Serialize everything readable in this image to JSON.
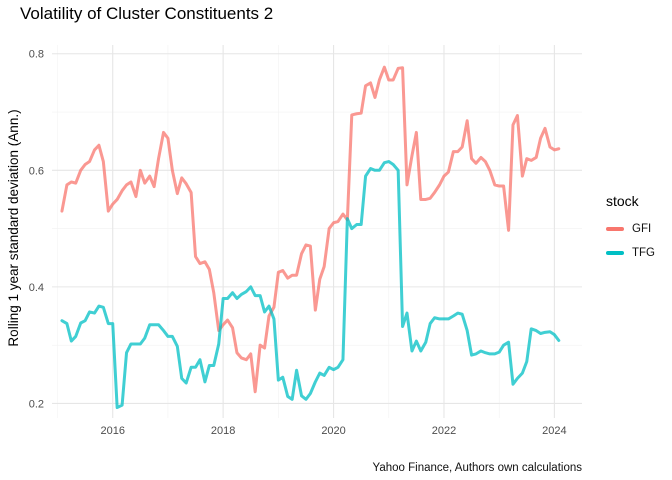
{
  "chart_data": {
    "type": "line",
    "title": "Volatility of Cluster Constituents 2",
    "xlabel": "",
    "ylabel": "Rolling 1 year standard deviation (Ann.)",
    "caption": "Yahoo Finance, Authors own calculations",
    "xlim": [
      2014.9,
      2024.5
    ],
    "ylim": [
      0.175,
      0.815
    ],
    "x_ticks": [
      2016,
      2018,
      2020,
      2022,
      2024
    ],
    "x_tick_labels": [
      "2016",
      "2018",
      "2020",
      "2022",
      "2024"
    ],
    "y_ticks": [
      0.2,
      0.4,
      0.6,
      0.8
    ],
    "y_tick_labels": [
      "0.2",
      "0.4",
      "0.6",
      "0.8"
    ],
    "grid": true,
    "legend": {
      "title": "stock",
      "position": "right"
    },
    "series": [
      {
        "name": "GFI",
        "color": "#F8766D",
        "points": [
          [
            2015.08,
            0.53
          ],
          [
            2015.17,
            0.575
          ],
          [
            2015.25,
            0.58
          ],
          [
            2015.33,
            0.578
          ],
          [
            2015.42,
            0.6
          ],
          [
            2015.5,
            0.61
          ],
          [
            2015.58,
            0.615
          ],
          [
            2015.67,
            0.635
          ],
          [
            2015.75,
            0.643
          ],
          [
            2015.83,
            0.615
          ],
          [
            2015.92,
            0.53
          ],
          [
            2016.0,
            0.542
          ],
          [
            2016.08,
            0.55
          ],
          [
            2016.17,
            0.565
          ],
          [
            2016.25,
            0.575
          ],
          [
            2016.33,
            0.58
          ],
          [
            2016.42,
            0.555
          ],
          [
            2016.5,
            0.6
          ],
          [
            2016.58,
            0.578
          ],
          [
            2016.67,
            0.59
          ],
          [
            2016.75,
            0.572
          ],
          [
            2016.83,
            0.62
          ],
          [
            2016.92,
            0.665
          ],
          [
            2017.0,
            0.655
          ],
          [
            2017.08,
            0.6
          ],
          [
            2017.17,
            0.56
          ],
          [
            2017.25,
            0.587
          ],
          [
            2017.33,
            0.577
          ],
          [
            2017.42,
            0.562
          ],
          [
            2017.5,
            0.452
          ],
          [
            2017.58,
            0.44
          ],
          [
            2017.67,
            0.443
          ],
          [
            2017.75,
            0.43
          ],
          [
            2017.83,
            0.39
          ],
          [
            2017.92,
            0.325
          ],
          [
            2018.0,
            0.335
          ],
          [
            2018.08,
            0.343
          ],
          [
            2018.17,
            0.33
          ],
          [
            2018.25,
            0.287
          ],
          [
            2018.33,
            0.278
          ],
          [
            2018.42,
            0.275
          ],
          [
            2018.5,
            0.285
          ],
          [
            2018.58,
            0.22
          ],
          [
            2018.67,
            0.3
          ],
          [
            2018.75,
            0.295
          ],
          [
            2018.83,
            0.35
          ],
          [
            2018.92,
            0.365
          ],
          [
            2019.0,
            0.425
          ],
          [
            2019.08,
            0.428
          ],
          [
            2019.17,
            0.415
          ],
          [
            2019.25,
            0.42
          ],
          [
            2019.33,
            0.42
          ],
          [
            2019.42,
            0.457
          ],
          [
            2019.5,
            0.472
          ],
          [
            2019.58,
            0.47
          ],
          [
            2019.67,
            0.36
          ],
          [
            2019.75,
            0.413
          ],
          [
            2019.83,
            0.435
          ],
          [
            2019.92,
            0.5
          ],
          [
            2020.0,
            0.51
          ],
          [
            2020.08,
            0.512
          ],
          [
            2020.17,
            0.525
          ],
          [
            2020.25,
            0.515
          ],
          [
            2020.33,
            0.695
          ],
          [
            2020.42,
            0.697
          ],
          [
            2020.5,
            0.698
          ],
          [
            2020.58,
            0.745
          ],
          [
            2020.67,
            0.75
          ],
          [
            2020.75,
            0.725
          ],
          [
            2020.83,
            0.755
          ],
          [
            2020.92,
            0.777
          ],
          [
            2021.0,
            0.755
          ],
          [
            2021.08,
            0.755
          ],
          [
            2021.17,
            0.775
          ],
          [
            2021.25,
            0.776
          ],
          [
            2021.33,
            0.575
          ],
          [
            2021.42,
            0.625
          ],
          [
            2021.5,
            0.665
          ],
          [
            2021.58,
            0.55
          ],
          [
            2021.67,
            0.55
          ],
          [
            2021.75,
            0.552
          ],
          [
            2021.83,
            0.562
          ],
          [
            2021.92,
            0.575
          ],
          [
            2022.0,
            0.59
          ],
          [
            2022.08,
            0.597
          ],
          [
            2022.17,
            0.632
          ],
          [
            2022.25,
            0.632
          ],
          [
            2022.33,
            0.64
          ],
          [
            2022.42,
            0.685
          ],
          [
            2022.5,
            0.62
          ],
          [
            2022.58,
            0.612
          ],
          [
            2022.67,
            0.622
          ],
          [
            2022.75,
            0.615
          ],
          [
            2022.83,
            0.6
          ],
          [
            2022.92,
            0.575
          ],
          [
            2023.0,
            0.573
          ],
          [
            2023.08,
            0.573
          ],
          [
            2023.17,
            0.497
          ],
          [
            2023.25,
            0.678
          ],
          [
            2023.33,
            0.694
          ],
          [
            2023.42,
            0.59
          ],
          [
            2023.5,
            0.62
          ],
          [
            2023.58,
            0.617
          ],
          [
            2023.67,
            0.622
          ],
          [
            2023.75,
            0.655
          ],
          [
            2023.83,
            0.672
          ],
          [
            2023.92,
            0.64
          ],
          [
            2024.0,
            0.635
          ],
          [
            2024.08,
            0.637
          ]
        ]
      },
      {
        "name": "TFG",
        "color": "#00BFC4",
        "points": [
          [
            2015.08,
            0.342
          ],
          [
            2015.17,
            0.337
          ],
          [
            2015.25,
            0.307
          ],
          [
            2015.33,
            0.315
          ],
          [
            2015.42,
            0.338
          ],
          [
            2015.5,
            0.342
          ],
          [
            2015.58,
            0.357
          ],
          [
            2015.67,
            0.355
          ],
          [
            2015.75,
            0.367
          ],
          [
            2015.83,
            0.365
          ],
          [
            2015.92,
            0.337
          ],
          [
            2016.0,
            0.337
          ],
          [
            2016.08,
            0.193
          ],
          [
            2016.17,
            0.197
          ],
          [
            2016.25,
            0.287
          ],
          [
            2016.33,
            0.302
          ],
          [
            2016.42,
            0.302
          ],
          [
            2016.5,
            0.302
          ],
          [
            2016.58,
            0.312
          ],
          [
            2016.67,
            0.335
          ],
          [
            2016.75,
            0.335
          ],
          [
            2016.83,
            0.335
          ],
          [
            2016.92,
            0.325
          ],
          [
            2017.0,
            0.315
          ],
          [
            2017.08,
            0.315
          ],
          [
            2017.17,
            0.298
          ],
          [
            2017.25,
            0.243
          ],
          [
            2017.33,
            0.235
          ],
          [
            2017.42,
            0.262
          ],
          [
            2017.5,
            0.262
          ],
          [
            2017.58,
            0.275
          ],
          [
            2017.67,
            0.237
          ],
          [
            2017.75,
            0.265
          ],
          [
            2017.83,
            0.265
          ],
          [
            2017.92,
            0.302
          ],
          [
            2018.0,
            0.38
          ],
          [
            2018.08,
            0.38
          ],
          [
            2018.17,
            0.39
          ],
          [
            2018.25,
            0.38
          ],
          [
            2018.33,
            0.387
          ],
          [
            2018.42,
            0.392
          ],
          [
            2018.5,
            0.4
          ],
          [
            2018.58,
            0.385
          ],
          [
            2018.67,
            0.385
          ],
          [
            2018.75,
            0.357
          ],
          [
            2018.83,
            0.367
          ],
          [
            2018.92,
            0.345
          ],
          [
            2019.0,
            0.24
          ],
          [
            2019.08,
            0.245
          ],
          [
            2019.17,
            0.212
          ],
          [
            2019.25,
            0.207
          ],
          [
            2019.33,
            0.257
          ],
          [
            2019.42,
            0.213
          ],
          [
            2019.5,
            0.207
          ],
          [
            2019.58,
            0.217
          ],
          [
            2019.67,
            0.237
          ],
          [
            2019.75,
            0.252
          ],
          [
            2019.83,
            0.248
          ],
          [
            2019.92,
            0.262
          ],
          [
            2020.0,
            0.258
          ],
          [
            2020.08,
            0.262
          ],
          [
            2020.17,
            0.275
          ],
          [
            2020.25,
            0.517
          ],
          [
            2020.33,
            0.5
          ],
          [
            2020.42,
            0.507
          ],
          [
            2020.5,
            0.507
          ],
          [
            2020.58,
            0.59
          ],
          [
            2020.67,
            0.603
          ],
          [
            2020.75,
            0.6
          ],
          [
            2020.83,
            0.6
          ],
          [
            2020.92,
            0.613
          ],
          [
            2021.0,
            0.615
          ],
          [
            2021.08,
            0.61
          ],
          [
            2021.17,
            0.6
          ],
          [
            2021.25,
            0.332
          ],
          [
            2021.33,
            0.355
          ],
          [
            2021.42,
            0.29
          ],
          [
            2021.5,
            0.307
          ],
          [
            2021.58,
            0.29
          ],
          [
            2021.67,
            0.305
          ],
          [
            2021.75,
            0.337
          ],
          [
            2021.83,
            0.347
          ],
          [
            2021.92,
            0.345
          ],
          [
            2022.0,
            0.345
          ],
          [
            2022.08,
            0.345
          ],
          [
            2022.17,
            0.35
          ],
          [
            2022.25,
            0.355
          ],
          [
            2022.33,
            0.353
          ],
          [
            2022.42,
            0.325
          ],
          [
            2022.5,
            0.283
          ],
          [
            2022.58,
            0.285
          ],
          [
            2022.67,
            0.29
          ],
          [
            2022.75,
            0.287
          ],
          [
            2022.83,
            0.285
          ],
          [
            2022.92,
            0.285
          ],
          [
            2023.0,
            0.288
          ],
          [
            2023.08,
            0.3
          ],
          [
            2023.17,
            0.305
          ],
          [
            2023.25,
            0.233
          ],
          [
            2023.33,
            0.243
          ],
          [
            2023.42,
            0.252
          ],
          [
            2023.5,
            0.272
          ],
          [
            2023.58,
            0.328
          ],
          [
            2023.67,
            0.325
          ],
          [
            2023.75,
            0.32
          ],
          [
            2023.83,
            0.322
          ],
          [
            2023.92,
            0.323
          ],
          [
            2024.0,
            0.318
          ],
          [
            2024.08,
            0.308
          ]
        ]
      }
    ]
  }
}
